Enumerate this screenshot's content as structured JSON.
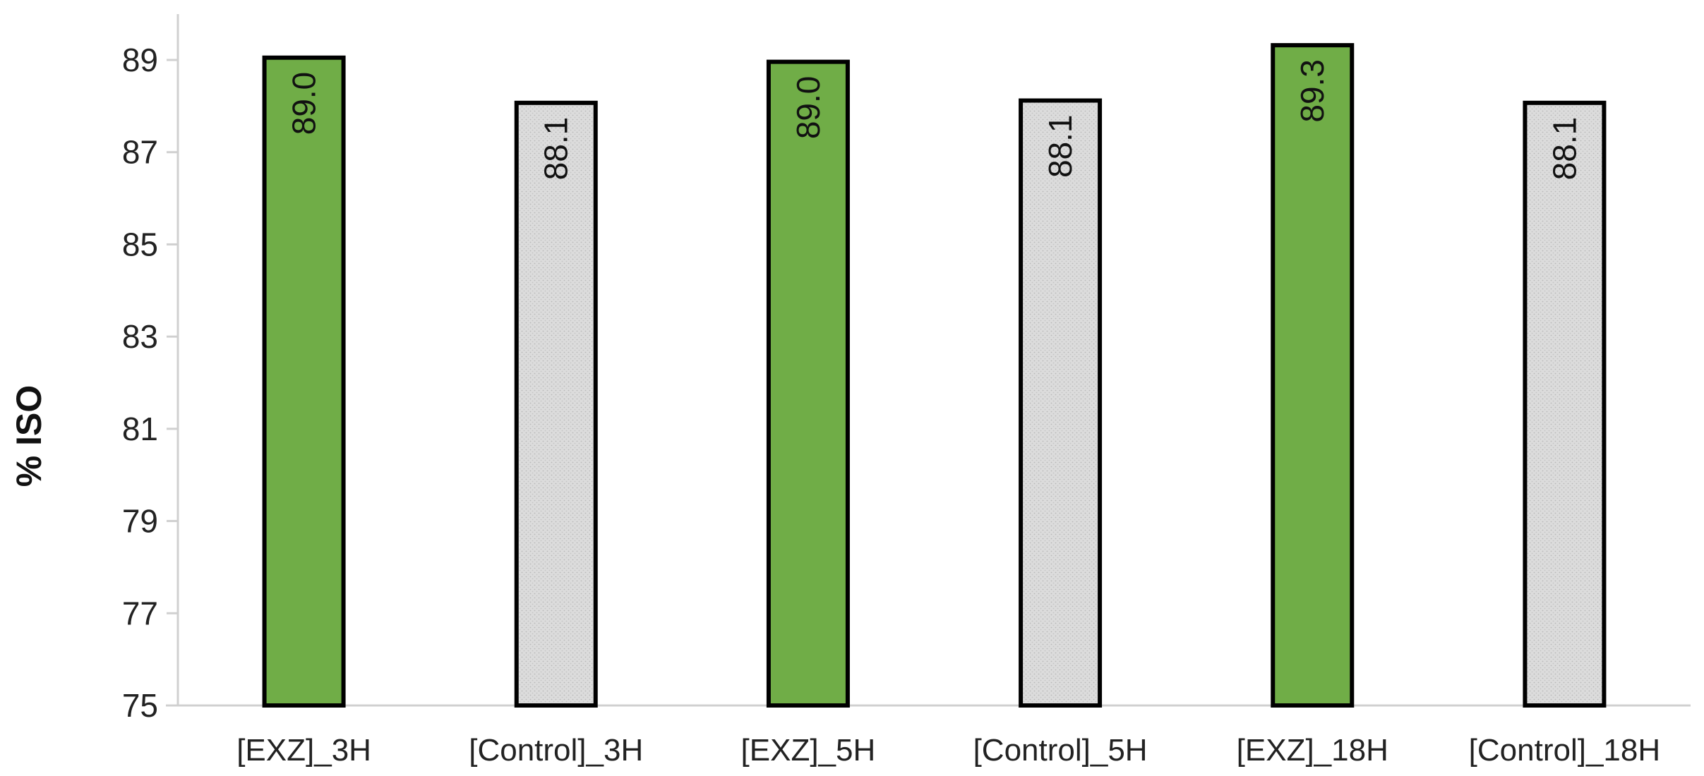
{
  "chart_data": {
    "type": "bar",
    "categories": [
      "[EXZ]_3H",
      "[Control]_3H",
      "[EXZ]_5H",
      "[Control]_5H",
      "[EXZ]_18H",
      "[Control]_18H"
    ],
    "values": [
      89.05,
      88.07,
      88.96,
      88.12,
      89.32,
      88.07
    ],
    "data_labels": [
      "89.0",
      "88.1",
      "89.0",
      "88.1",
      "89.3",
      "88.1"
    ],
    "bar_colors": [
      "#70ad47",
      "#d9d9d9",
      "#70ad47",
      "#d9d9d9",
      "#70ad47",
      "#d9d9d9"
    ],
    "title": "",
    "xlabel": "",
    "ylabel": "% ISO",
    "ylim": [
      75,
      90
    ],
    "yticks": [
      75,
      77,
      79,
      81,
      83,
      85,
      87,
      89
    ],
    "grid": false,
    "legend": "none"
  }
}
